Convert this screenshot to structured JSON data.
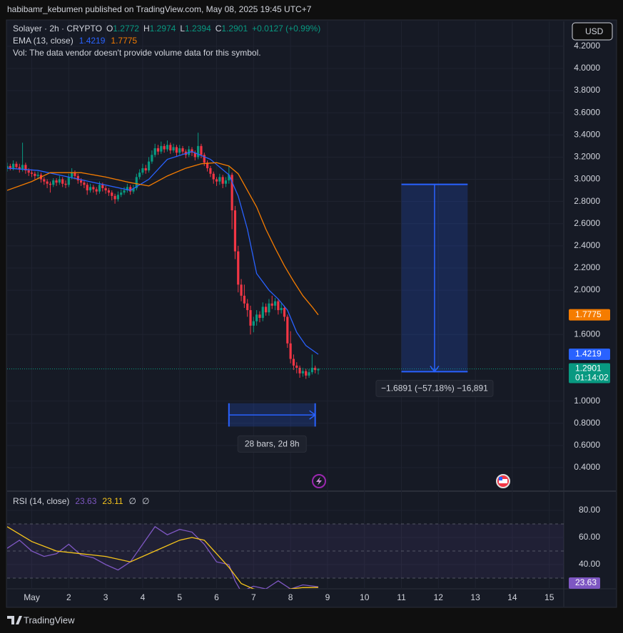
{
  "header": {
    "publisher": "habibamr_kebumen published on TradingView.com, May 08, 2025 19:45 UTC+7"
  },
  "legend": {
    "symbol": "Solayer · 2h · CRYPTO",
    "o": "O",
    "h": "H",
    "l": "L",
    "c": "C",
    "change": "+0.0127 (+0.99%)",
    "ema": "EMA (13, close)",
    "vol": "Vol: The data vendor doesn't provide volume data for this symbol."
  },
  "currency": "USD",
  "footer": "TradingView",
  "chart_data": [
    {
      "type": "candlestick",
      "up_color": "#089981",
      "down_color": "#f23645",
      "open": [
        3.1,
        3.12,
        3.1,
        3.14,
        3.11,
        3.09,
        3.13,
        3.08,
        3.06,
        3.05,
        3.03,
        3.04,
        3.0,
        2.98,
        2.96,
        2.95,
        2.99,
        2.97,
        3.0,
        2.96,
        2.95,
        3.02,
        3.06,
        3.03,
        2.99,
        2.97,
        2.95,
        2.9,
        2.93,
        2.91,
        2.89,
        2.95,
        2.92,
        2.9,
        2.88,
        2.85,
        2.82,
        2.86,
        2.88,
        2.9,
        2.93,
        2.89,
        2.92,
        3.02,
        3.06,
        3.1,
        3.08,
        3.16,
        3.22,
        3.28,
        3.25,
        3.3,
        3.27,
        3.31,
        3.26,
        3.29,
        3.24,
        3.28,
        3.25,
        3.22,
        3.27,
        3.24,
        3.2,
        3.3,
        3.22,
        3.15,
        3.1,
        3.05,
        3.0,
        2.98,
        3.02,
        2.96,
        2.99,
        3.04,
        2.72,
        2.35,
        2.05,
        1.95,
        1.88,
        1.82,
        1.68,
        1.72,
        1.78,
        1.75,
        1.85,
        1.8,
        1.88,
        1.86,
        1.9,
        1.82,
        1.84,
        1.76,
        1.52,
        1.38,
        1.32,
        1.3,
        1.25,
        1.27,
        1.23,
        1.26,
        1.3,
        1.2772
      ],
      "high": [
        3.15,
        3.14,
        3.17,
        3.16,
        3.14,
        3.33,
        3.15,
        3.1,
        3.09,
        3.07,
        3.07,
        3.06,
        3.02,
        3.0,
        2.98,
        3.01,
        3.01,
        3.03,
        3.02,
        2.99,
        3.05,
        3.1,
        3.08,
        3.05,
        3.01,
        2.99,
        2.97,
        2.96,
        2.95,
        2.93,
        2.98,
        2.97,
        2.94,
        2.92,
        2.9,
        2.87,
        2.89,
        2.91,
        2.93,
        2.96,
        2.95,
        2.95,
        3.05,
        3.09,
        3.14,
        3.13,
        3.2,
        3.26,
        3.32,
        3.31,
        3.34,
        3.32,
        3.35,
        3.33,
        3.32,
        3.31,
        3.31,
        3.3,
        3.27,
        3.3,
        3.29,
        3.26,
        3.42,
        3.32,
        3.24,
        3.17,
        3.12,
        3.07,
        3.02,
        3.05,
        3.04,
        3.02,
        3.12,
        3.06,
        2.76,
        2.4,
        2.1,
        2.05,
        1.92,
        1.86,
        1.76,
        1.82,
        1.81,
        1.89,
        1.88,
        1.92,
        1.95,
        1.93,
        1.92,
        1.88,
        1.86,
        1.78,
        1.63,
        1.42,
        1.35,
        1.32,
        1.3,
        1.29,
        1.29,
        1.42,
        1.32,
        1.2974
      ],
      "low": [
        3.07,
        3.08,
        3.08,
        3.09,
        3.06,
        3.07,
        3.05,
        3.03,
        3.02,
        3.0,
        3.01,
        2.97,
        2.95,
        2.92,
        2.88,
        2.93,
        2.94,
        2.95,
        2.93,
        2.92,
        2.93,
        3.0,
        3.0,
        2.96,
        2.94,
        2.92,
        2.86,
        2.88,
        2.88,
        2.86,
        2.87,
        2.89,
        2.87,
        2.85,
        2.81,
        2.78,
        2.8,
        2.84,
        2.86,
        2.88,
        2.86,
        2.87,
        2.9,
        3.0,
        3.04,
        3.05,
        3.06,
        3.14,
        3.2,
        3.22,
        3.23,
        3.24,
        3.25,
        3.23,
        3.24,
        3.21,
        3.22,
        3.22,
        3.19,
        3.2,
        3.21,
        3.17,
        3.18,
        3.19,
        3.12,
        3.07,
        3.02,
        2.96,
        2.94,
        2.95,
        2.92,
        2.93,
        2.96,
        2.55,
        2.28,
        1.98,
        1.9,
        1.84,
        1.76,
        1.6,
        1.62,
        1.68,
        1.71,
        1.72,
        1.77,
        1.77,
        1.83,
        1.82,
        1.78,
        1.79,
        1.72,
        1.48,
        1.34,
        1.28,
        1.25,
        1.21,
        1.22,
        1.2,
        1.21,
        1.24,
        1.25,
        1.2394
      ],
      "close": [
        3.12,
        3.1,
        3.14,
        3.11,
        3.09,
        3.13,
        3.08,
        3.06,
        3.05,
        3.03,
        3.04,
        3.0,
        2.98,
        2.96,
        2.95,
        2.99,
        2.97,
        3.0,
        2.96,
        2.95,
        3.02,
        3.06,
        3.03,
        2.99,
        2.97,
        2.95,
        2.9,
        2.93,
        2.91,
        2.89,
        2.95,
        2.92,
        2.9,
        2.88,
        2.85,
        2.82,
        2.86,
        2.88,
        2.9,
        2.93,
        2.89,
        2.92,
        3.02,
        3.06,
        3.1,
        3.08,
        3.16,
        3.22,
        3.28,
        3.25,
        3.3,
        3.27,
        3.31,
        3.26,
        3.29,
        3.24,
        3.28,
        3.25,
        3.22,
        3.27,
        3.24,
        3.2,
        3.3,
        3.22,
        3.15,
        3.1,
        3.05,
        3.0,
        2.98,
        3.02,
        2.96,
        2.99,
        3.04,
        2.72,
        2.35,
        2.05,
        1.95,
        1.88,
        1.82,
        1.68,
        1.72,
        1.78,
        1.75,
        1.85,
        1.8,
        1.88,
        1.86,
        1.9,
        1.82,
        1.84,
        1.76,
        1.52,
        1.38,
        1.32,
        1.3,
        1.25,
        1.27,
        1.23,
        1.26,
        1.3,
        1.28,
        1.2901
      ],
      "series": [
        {
          "color": "#2962ff",
          "x": [
            0,
            10,
            20,
            30,
            40,
            46,
            52,
            60,
            66,
            72,
            75,
            78,
            81,
            85,
            88,
            91,
            94,
            97,
            101
          ],
          "values": [
            3.1,
            3.08,
            3.02,
            2.96,
            2.9,
            3.0,
            3.18,
            3.25,
            3.18,
            3.04,
            2.85,
            2.55,
            2.15,
            2.0,
            1.92,
            1.82,
            1.62,
            1.5,
            1.4219
          ]
        },
        {
          "color": "#f57c00",
          "x": [
            0,
            8,
            14,
            24,
            32,
            40,
            46,
            52,
            58,
            63,
            68,
            72,
            75,
            78,
            81,
            84,
            87,
            90,
            93,
            96,
            99,
            101
          ],
          "values": [
            2.9,
            2.98,
            3.06,
            3.06,
            3.02,
            2.97,
            2.94,
            3.03,
            3.1,
            3.14,
            3.15,
            3.12,
            3.05,
            2.9,
            2.75,
            2.55,
            2.38,
            2.22,
            2.08,
            1.95,
            1.85,
            1.7775
          ]
        }
      ],
      "xlim": [
        0,
        180.7
      ],
      "ylim": [
        0.194,
        4.424
      ],
      "xticks": [
        {
          "value": 8,
          "label": "May"
        },
        {
          "value": 20,
          "label": "2"
        },
        {
          "value": 32,
          "label": "3"
        },
        {
          "value": 44,
          "label": "4"
        },
        {
          "value": 56,
          "label": "5"
        },
        {
          "value": 68,
          "label": "6"
        },
        {
          "value": 80,
          "label": "7"
        },
        {
          "value": 92,
          "label": "8"
        },
        {
          "value": 104,
          "label": "9"
        },
        {
          "value": 116,
          "label": "10"
        },
        {
          "value": 128,
          "label": "11"
        },
        {
          "value": 140,
          "label": "12"
        },
        {
          "value": 152,
          "label": "13"
        },
        {
          "value": 164,
          "label": "14"
        },
        {
          "value": 176,
          "label": "15"
        }
      ],
      "yticks": [
        {
          "value": 0.4,
          "label": "0.4000"
        },
        {
          "value": 0.6,
          "label": "0.6000"
        },
        {
          "value": 0.8,
          "label": "0.8000"
        },
        {
          "value": 1.0,
          "label": "1.0000"
        },
        {
          "value": 1.6,
          "label": "1.6000"
        },
        {
          "value": 2.0,
          "label": "2.0000"
        },
        {
          "value": 2.2,
          "label": "2.2000"
        },
        {
          "value": 2.4,
          "label": "2.4000"
        },
        {
          "value": 2.6,
          "label": "2.6000"
        },
        {
          "value": 2.8,
          "label": "2.8000"
        },
        {
          "value": 3.0,
          "label": "3.0000"
        },
        {
          "value": 3.2,
          "label": "3.2000"
        },
        {
          "value": 3.4,
          "label": "3.4000"
        },
        {
          "value": 3.6,
          "label": "3.6000"
        },
        {
          "value": 3.8,
          "label": "3.8000"
        },
        {
          "value": 4.0,
          "label": "4.0000"
        },
        {
          "value": 4.2,
          "label": "4.2000"
        }
      ],
      "grid": true,
      "countdown": "01:14:02",
      "measure": {
        "x": [
          128,
          149.5
        ],
        "values": [
          2.954,
          1.265
        ],
        "label": "−1.6891 (−57.18%) −16,891"
      },
      "range": {
        "x": [
          72,
          100
        ],
        "values": [
          0.98,
          0.77
        ],
        "label": "28 bars, 2d 8h"
      }
    },
    {
      "type": "line",
      "label": "RSI (14, close)",
      "na": [
        "∅",
        "∅"
      ],
      "series": [
        {
          "color": "#7e57c2",
          "x": [
            0,
            4,
            8,
            12,
            16,
            20,
            24,
            28,
            32,
            36,
            40,
            44,
            48,
            52,
            56,
            60,
            64,
            68,
            72,
            74,
            76,
            80,
            84,
            88,
            92,
            96,
            101
          ],
          "values": [
            52,
            58,
            50,
            46,
            48,
            55,
            47,
            45,
            40,
            36,
            42,
            55,
            68,
            62,
            66,
            64,
            55,
            42,
            40,
            28,
            20,
            24,
            22,
            28,
            22,
            25,
            23.63
          ]
        },
        {
          "color": "#f7c51b",
          "x": [
            0,
            8,
            16,
            24,
            32,
            40,
            48,
            56,
            60,
            64,
            68,
            72,
            76,
            80,
            84,
            88,
            92,
            96,
            101
          ],
          "values": [
            68,
            57,
            50,
            48,
            46,
            42,
            50,
            58,
            60,
            58,
            48,
            38,
            26,
            22,
            20,
            21,
            22,
            23,
            23.11
          ]
        }
      ],
      "levels": [
        70,
        50,
        30
      ],
      "xlim": [
        0,
        180.7
      ],
      "ylim": [
        22.1,
        93.7
      ],
      "yticks": [
        {
          "value": 40,
          "label": "40.00"
        },
        {
          "value": 60,
          "label": "60.00"
        },
        {
          "value": 80,
          "label": "80.00"
        }
      ],
      "grid": true
    }
  ]
}
